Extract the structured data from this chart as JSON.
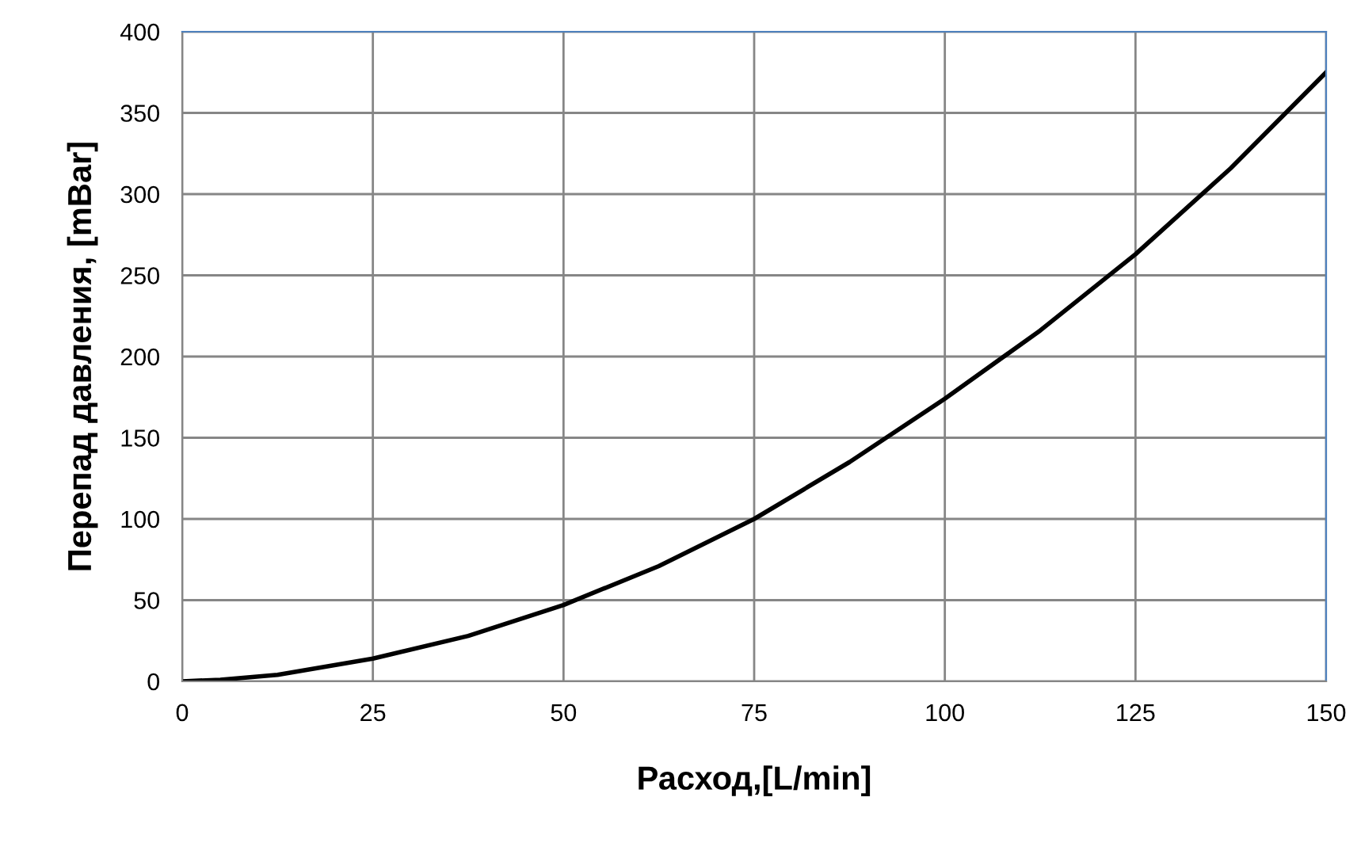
{
  "chart_data": {
    "type": "line",
    "xlabel": "Расход,[L/min]",
    "ylabel": "Перепад давления, [mBar]",
    "x": [
      0,
      5,
      12.5,
      25,
      37.5,
      50,
      62.5,
      75,
      87.5,
      100,
      112.5,
      125,
      137.5,
      150
    ],
    "series": [
      {
        "color": "#000000",
        "values": [
          0,
          1,
          4,
          14,
          28,
          47,
          71,
          100,
          135,
          174,
          216,
          263,
          316,
          375
        ]
      }
    ],
    "xlim": [
      0,
      150
    ],
    "xticks": [
      0,
      25,
      50,
      75,
      100,
      125,
      150
    ],
    "ylim": [
      0,
      400
    ],
    "yticks": [
      0,
      50,
      100,
      150,
      200,
      250,
      300,
      350,
      400
    ],
    "grid": true,
    "marker": "none",
    "line_style": "solid"
  }
}
